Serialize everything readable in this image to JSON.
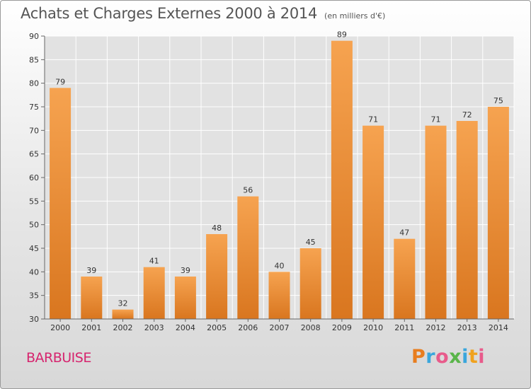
{
  "header": {
    "title": "Achats et Charges Externes 2000 à 2014",
    "subtitle": "(en milliers d'€)"
  },
  "footer": {
    "place": "BARBUISE",
    "logo": "Proxiti"
  },
  "colors": {
    "bar_light": "#f6a350",
    "bar_dark": "#d9761f",
    "grid": "#ffffff",
    "axis_text": "#333333",
    "logo_p": "#e87d1e",
    "logo_r": "#3aa6dc",
    "logo_o": "#e85b8b",
    "logo_x": "#5ab54a",
    "logo_i1": "#3aa6dc",
    "logo_t": "#f0a21e",
    "logo_i2": "#e85b8b"
  },
  "chart_data": {
    "type": "bar",
    "title": "Achats et Charges Externes 2000 à 2014",
    "subtitle": "(en milliers d'€)",
    "categories": [
      "2000",
      "2001",
      "2002",
      "2003",
      "2004",
      "2005",
      "2006",
      "2007",
      "2008",
      "2009",
      "2010",
      "2011",
      "2012",
      "2013",
      "2014"
    ],
    "values": [
      79,
      39,
      32,
      41,
      39,
      48,
      56,
      40,
      45,
      89,
      71,
      47,
      71,
      72,
      75
    ],
    "ylim": [
      30,
      90
    ],
    "yticks": [
      30,
      35,
      40,
      45,
      50,
      55,
      60,
      65,
      70,
      75,
      80,
      85,
      90
    ],
    "grid": true,
    "data_labels": true
  }
}
